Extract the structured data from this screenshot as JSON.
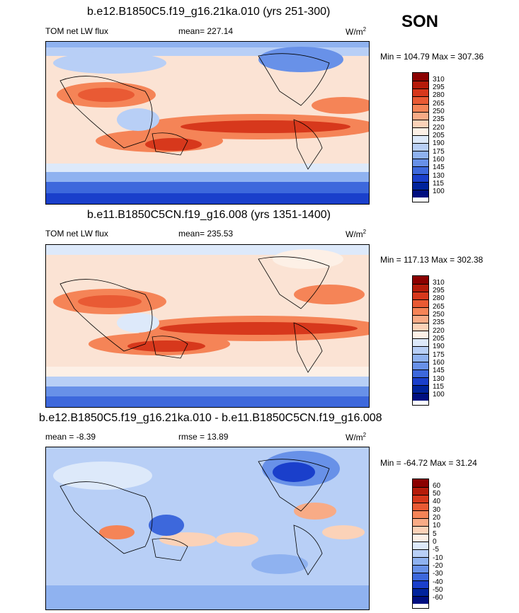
{
  "season": "SON",
  "panels": [
    {
      "title": "b.e12.B1850C5.f19_g16.21ka.010 (yrs 251-300)",
      "left_label": "TOM net LW flux",
      "mean_label": "mean= 227.14",
      "units": "W/m",
      "units_sup": "2",
      "minmax": "Min = 104.79 Max = 307.36",
      "levels": [
        "310",
        "295",
        "280",
        "265",
        "250",
        "235",
        "220",
        "205",
        "190",
        "175",
        "160",
        "145",
        "130",
        "115",
        "100"
      ]
    },
    {
      "title": "b.e11.B1850C5CN.f19_g16.008 (yrs 1351-1400)",
      "left_label": "TOM net LW flux",
      "mean_label": "mean= 235.53",
      "units": "W/m",
      "units_sup": "2",
      "minmax": "Min = 117.13 Max = 302.38",
      "levels": [
        "310",
        "295",
        "280",
        "265",
        "250",
        "235",
        "220",
        "205",
        "190",
        "175",
        "160",
        "145",
        "130",
        "115",
        "100"
      ]
    },
    {
      "title": "b.e12.B1850C5.f19_g16.21ka.010 - b.e11.B1850C5CN.f19_g16.008",
      "left_label": "mean =  -8.39",
      "mean_label": "rmse =  13.89",
      "units": "W/m",
      "units_sup": "2",
      "minmax": "Min = -64.72 Max =  31.24",
      "levels": [
        "60",
        "50",
        "40",
        "30",
        "20",
        "10",
        "5",
        "0",
        "-5",
        "-10",
        "-20",
        "-30",
        "-40",
        "-50",
        "-60"
      ]
    }
  ],
  "colorbar_colors": [
    "#8b0000",
    "#b51b0a",
    "#d7381c",
    "#e95a34",
    "#f58457",
    "#f8ab86",
    "#fbd2b8",
    "#fdf0e6",
    "#dde9fa",
    "#b8cff6",
    "#8fb2f0",
    "#6891e8",
    "#3d68dc",
    "#1a3fcb",
    "#00239c",
    "#000f80"
  ],
  "diff_colorbar_colors": [
    "#8b0000",
    "#b51b0a",
    "#d7381c",
    "#e95a34",
    "#f58457",
    "#f8ab86",
    "#fbd2b8",
    "#fdf0e6",
    "#dde9fa",
    "#b8cff6",
    "#8fb2f0",
    "#6891e8",
    "#3d68dc",
    "#1a3fcb",
    "#00239c",
    "#000f80"
  ]
}
